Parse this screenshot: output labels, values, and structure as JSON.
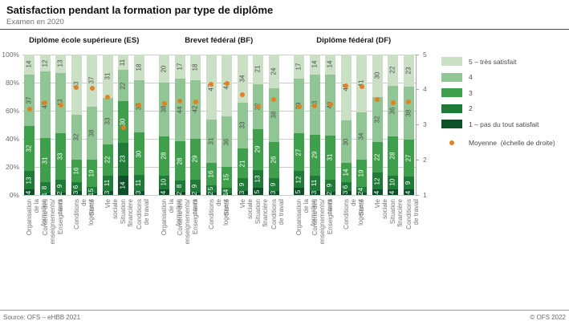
{
  "title": "Satisfaction pendant la formation par type de diplôme",
  "subtitle": "Examen en 2020",
  "footer": {
    "source": "Source: OFS – eHBB 2021",
    "copyright": "© OFS 2022"
  },
  "legend": {
    "items": [
      {
        "label": "5 – très satisfait",
        "color": "#c9e0c5"
      },
      {
        "label": "4",
        "color": "#90c694"
      },
      {
        "label": "3",
        "color": "#3fa04c"
      },
      {
        "label": "2",
        "color": "#1e7c37"
      },
      {
        "label": "1 – pas du tout satisfait",
        "color": "#0c5127"
      }
    ],
    "mean": {
      "label": "Moyenne  (échelle de droite)",
      "color": "#e87f1f"
    }
  },
  "axes": {
    "left_ticks": [
      "0%",
      "20%",
      "40%",
      "60%",
      "80%",
      "100%"
    ],
    "right_ticks": [
      "1",
      "2",
      "3",
      "4",
      "5"
    ]
  },
  "chart_data": {
    "type": "bar",
    "stacked": true,
    "title": "Satisfaction pendant la formation par type de diplôme",
    "subtitle": "Examen en 2020",
    "unit_left": "%",
    "ylim_left": [
      0,
      100
    ],
    "ylim_right": [
      1,
      5
    ],
    "grid": true,
    "legend_position": "right",
    "series_order_bottom_to_top": [
      "1 – pas du tout satisfait",
      "2",
      "3",
      "4",
      "5 – très satisfait"
    ],
    "segment_colors": [
      "#0c5127",
      "#1e7c37",
      "#3fa04c",
      "#90c694",
      "#c9e0c5"
    ],
    "mean_color": "#e87f1f",
    "categories": [
      "Organisation de la formation",
      "Contenu des enseignements/\ncours",
      "Enseignants",
      "Conditions de logement",
      "Santé",
      "Vie sociale",
      "Situation financière",
      "Conditions de travail"
    ],
    "groups": [
      {
        "name": "Diplôme école supérieure (ES)",
        "bars": [
          {
            "values": [
              4,
              13,
              32,
              37,
              14
            ],
            "mean": 3.44
          },
          {
            "values": [
              1,
              8,
              31,
              47,
              12
            ],
            "mean": 3.62
          },
          {
            "values": [
              2,
              9,
              33,
              43,
              13
            ],
            "mean": 3.56
          },
          {
            "values": [
              3,
              6,
              16,
              32,
              43
            ],
            "mean": 4.06
          },
          {
            "values": [
              1,
              5,
              19,
              38,
              37
            ],
            "mean": 4.05
          },
          {
            "values": [
              3,
              11,
              22,
              33,
              31
            ],
            "mean": 3.78
          },
          {
            "values": [
              14,
              23,
              30,
              22,
              11
            ],
            "mean": 2.93
          },
          {
            "values": [
              3,
              11,
              30,
              37,
              18
            ],
            "mean": 3.57
          }
        ]
      },
      {
        "name": "Brevet fédéral (BF)",
        "bars": [
          {
            "values": [
              4,
              10,
              28,
              38,
              20
            ],
            "mean": 3.6
          },
          {
            "values": [
              2,
              8,
              28,
              44,
              17
            ],
            "mean": 3.67
          },
          {
            "values": [
              2,
              9,
              29,
              42,
              18
            ],
            "mean": 3.65
          },
          {
            "values": [
              2,
              5,
              16,
              31,
              47
            ],
            "mean": 4.15
          },
          {
            "values": [
              1,
              4,
              15,
              36,
              44
            ],
            "mean": 4.18
          },
          {
            "values": [
              3,
              9,
              21,
              33,
              34
            ],
            "mean": 3.86
          },
          {
            "values": [
              5,
              13,
              29,
              32,
              21
            ],
            "mean": 3.51
          },
          {
            "values": [
              3,
              9,
              26,
              38,
              24
            ],
            "mean": 3.71
          }
        ]
      },
      {
        "name": "Diplôme fédéral (DF)",
        "bars": [
          {
            "values": [
              5,
              12,
              27,
              39,
              17
            ],
            "mean": 3.51
          },
          {
            "values": [
              3,
              11,
              29,
              43,
              14
            ],
            "mean": 3.54
          },
          {
            "values": [
              2,
              9,
              31,
              43,
              14
            ],
            "mean": 3.59
          },
          {
            "values": [
              3,
              6,
              14,
              30,
              47
            ],
            "mean": 4.12
          },
          {
            "values": [
              2,
              4,
              19,
              34,
              41
            ],
            "mean": 4.08
          },
          {
            "values": [
              4,
              12,
              22,
              32,
              30
            ],
            "mean": 3.72
          },
          {
            "values": [
              4,
              10,
              28,
              36,
              22
            ],
            "mean": 3.62
          },
          {
            "values": [
              4,
              9,
              27,
              38,
              23
            ],
            "mean": 3.66
          }
        ]
      }
    ]
  }
}
